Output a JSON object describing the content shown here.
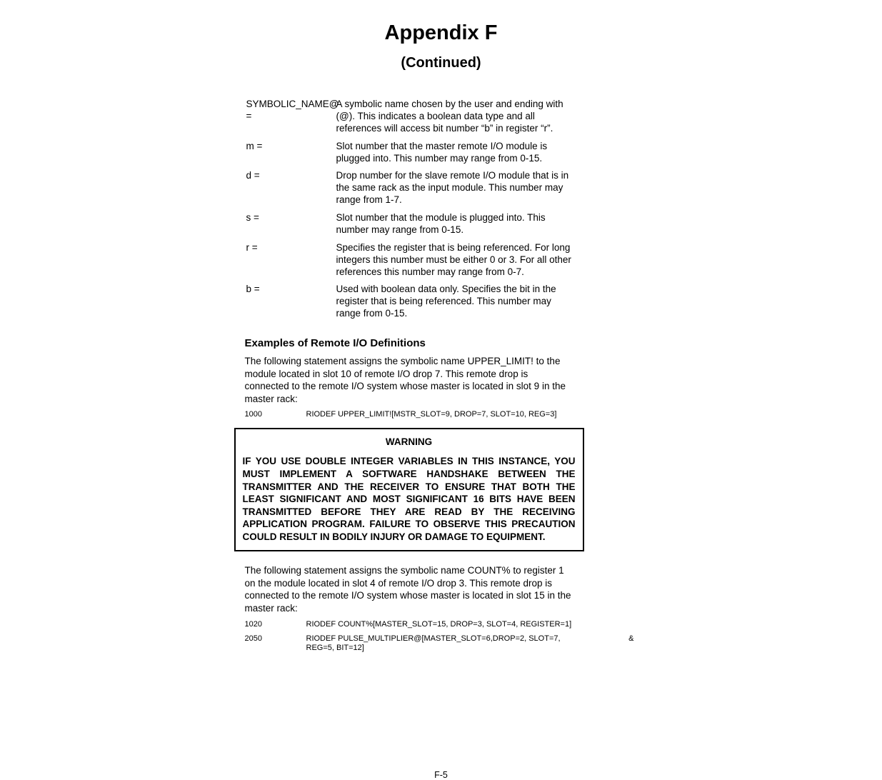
{
  "title": "Appendix F",
  "subtitle": "(Continued)",
  "definitions": [
    {
      "term": "SYMBOLIC_NAME@ =",
      "desc": "A symbolic name chosen by the user and ending with (@). This indicates a boolean data type and all references will access bit number “b” in register “r”."
    },
    {
      "term": "m =",
      "desc": "Slot number that the master remote I/O module is plugged into. This number may range from 0-15."
    },
    {
      "term": "d =",
      "desc": "Drop number for the slave remote I/O module that is in the same rack as the input module. This number may range from 1-7."
    },
    {
      "term": "s =",
      "desc": "Slot number that the module is plugged into. This number may range from 0-15."
    },
    {
      "term": "r =",
      "desc": "Specifies the register that is being referenced. For long integers this number must be either 0 or 3. For all other references this number may range from 0-7."
    },
    {
      "term": "b =",
      "desc": "Used with boolean data only. Specifies the bit in the register that is being referenced. This number may range from 0-15."
    }
  ],
  "section_heading": "Examples of Remote I/O Definitions",
  "para1": "The following statement assigns the symbolic name UPPER_LIMIT! to the module located in slot 10 of remote I/O drop 7. This remote drop is connected to the remote I/O system whose master is located in slot 9 in the master rack:",
  "code1_lineno": "1000",
  "code1_text": "RIODEF UPPER_LIMIT![MSTR_SLOT=9, DROP=7, SLOT=10, REG=3]",
  "warning_title": "WARNING",
  "warning_body": "IF YOU USE DOUBLE INTEGER VARIABLES IN THIS INSTANCE, YOU MUST IMPLEMENT A SOFTWARE HANDSHAKE BETWEEN THE TRANSMITTER AND THE RECEIVER TO ENSURE THAT BOTH THE LEAST SIGNIFICANT AND MOST SIGNIFICANT 16 BITS HAVE BEEN TRANSMITTED BEFORE THEY ARE READ BY THE RECEIVING APPLICATION PROGRAM. FAILURE TO OBSERVE THIS PRECAUTION COULD RESULT IN BODILY INJURY OR DAMAGE TO EQUIPMENT.",
  "para2": "The following statement assigns the symbolic name COUNT% to register 1 on the module located in slot 4 of remote I/O drop 3. This remote drop is connected to the remote I/O system whose master is located in slot 15 in the master rack:",
  "code2_lineno": "1020",
  "code2_text": "RIODEF COUNT%[MASTER_SLOT=15, DROP=3, SLOT=4, REGISTER=1]",
  "code3_lineno": "2050",
  "code3_text": "RIODEF PULSE_MULTIPLIER@[MASTER_SLOT=6,DROP=2, SLOT=7,",
  "code3_amp": "&",
  "code3_cont": "REG=5, BIT=12]",
  "page_number": "F-5"
}
